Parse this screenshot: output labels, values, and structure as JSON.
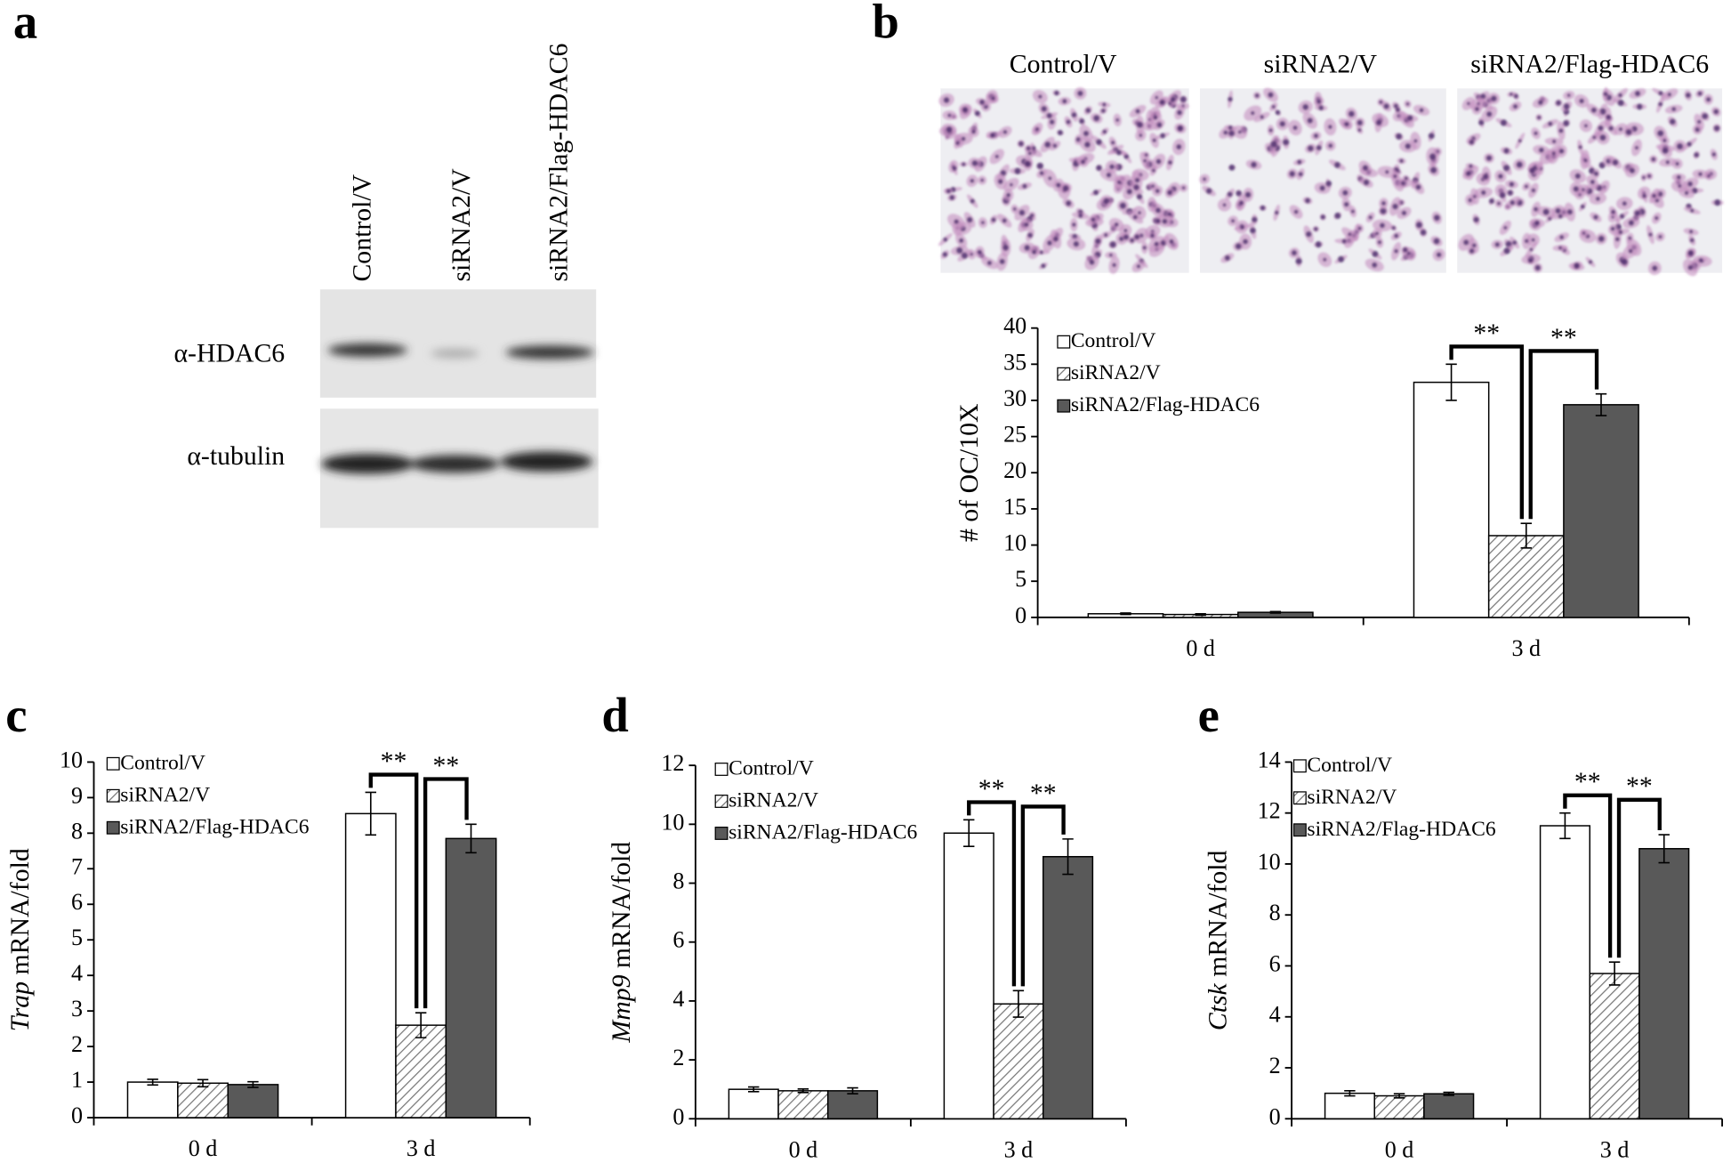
{
  "figure": {
    "panels": [
      "a",
      "b",
      "c",
      "d",
      "e"
    ],
    "blot": {
      "lanes": [
        "Control/V",
        "siRNA2/V",
        "siRNA2/Flag-HDAC6"
      ],
      "rows": [
        "α-HDAC6",
        "α-tubulin"
      ]
    },
    "micrographs": {
      "titles": [
        "Control/V",
        "siRNA2/V",
        "siRNA2/Flag-HDAC6"
      ]
    }
  },
  "chart_data": [
    {
      "type": "bar",
      "ylabel": "# of OC/10X",
      "ylabel_italic_first_word": false,
      "categories": [
        "0 d",
        "3 d"
      ],
      "ylim": [
        0,
        40
      ],
      "yticks": [
        0,
        5,
        10,
        15,
        20,
        25,
        30,
        35,
        40
      ],
      "series": [
        {
          "name": "Control/V",
          "color": "#ffffff",
          "values": [
            0.5,
            32.5
          ],
          "errors": [
            0.1,
            2.5
          ]
        },
        {
          "name": "siRNA2/V",
          "color": "#ffffff",
          "pattern": "hatch",
          "values": [
            0.4,
            11.3
          ],
          "errors": [
            0.1,
            1.7
          ]
        },
        {
          "name": "siRNA2/Flag-HDAC6",
          "color": "#595959",
          "values": [
            0.7,
            29.4
          ],
          "errors": [
            0.1,
            1.5
          ]
        }
      ],
      "significance": [
        "**",
        "**"
      ]
    },
    {
      "type": "bar",
      "ylabel": "Trap mRNA/fold",
      "ylabel_italic_first_word": true,
      "categories": [
        "0 d",
        "3 d"
      ],
      "ylim": [
        0,
        10
      ],
      "yticks": [
        0,
        1,
        2,
        3,
        4,
        5,
        6,
        7,
        8,
        9,
        10
      ],
      "series": [
        {
          "name": "Control/V",
          "color": "#ffffff",
          "values": [
            1.0,
            8.55
          ],
          "errors": [
            0.08,
            0.6
          ]
        },
        {
          "name": "siRNA2/V",
          "color": "#ffffff",
          "pattern": "hatch",
          "values": [
            0.97,
            2.6
          ],
          "errors": [
            0.1,
            0.35
          ]
        },
        {
          "name": "siRNA2/Flag-HDAC6",
          "color": "#595959",
          "values": [
            0.93,
            7.85
          ],
          "errors": [
            0.08,
            0.4
          ]
        }
      ],
      "significance": [
        "**",
        "**"
      ]
    },
    {
      "type": "bar",
      "ylabel": "Mmp9 mRNA/fold",
      "ylabel_italic_first_word": true,
      "categories": [
        "0 d",
        "3 d"
      ],
      "ylim": [
        0,
        12
      ],
      "yticks": [
        0,
        2,
        4,
        6,
        8,
        10,
        12
      ],
      "series": [
        {
          "name": "Control/V",
          "color": "#ffffff",
          "values": [
            1.0,
            9.7
          ],
          "errors": [
            0.08,
            0.45
          ]
        },
        {
          "name": "siRNA2/V",
          "color": "#ffffff",
          "pattern": "hatch",
          "values": [
            0.95,
            3.9
          ],
          "errors": [
            0.06,
            0.45
          ]
        },
        {
          "name": "siRNA2/Flag-HDAC6",
          "color": "#595959",
          "values": [
            0.95,
            8.9
          ],
          "errors": [
            0.1,
            0.6
          ]
        }
      ],
      "significance": [
        "**",
        "**"
      ]
    },
    {
      "type": "bar",
      "ylabel": "Ctsk mRNA/fold",
      "ylabel_italic_first_word": true,
      "categories": [
        "0 d",
        "3 d"
      ],
      "ylim": [
        0,
        14
      ],
      "yticks": [
        0,
        2,
        4,
        6,
        8,
        10,
        12,
        14
      ],
      "series": [
        {
          "name": "Control/V",
          "color": "#ffffff",
          "values": [
            1.0,
            11.5
          ],
          "errors": [
            0.1,
            0.5
          ]
        },
        {
          "name": "siRNA2/V",
          "color": "#ffffff",
          "pattern": "hatch",
          "values": [
            0.9,
            5.7
          ],
          "errors": [
            0.08,
            0.45
          ]
        },
        {
          "name": "siRNA2/Flag-HDAC6",
          "color": "#595959",
          "values": [
            0.98,
            10.6
          ],
          "errors": [
            0.06,
            0.55
          ]
        }
      ],
      "significance": [
        "**",
        "**"
      ]
    }
  ]
}
